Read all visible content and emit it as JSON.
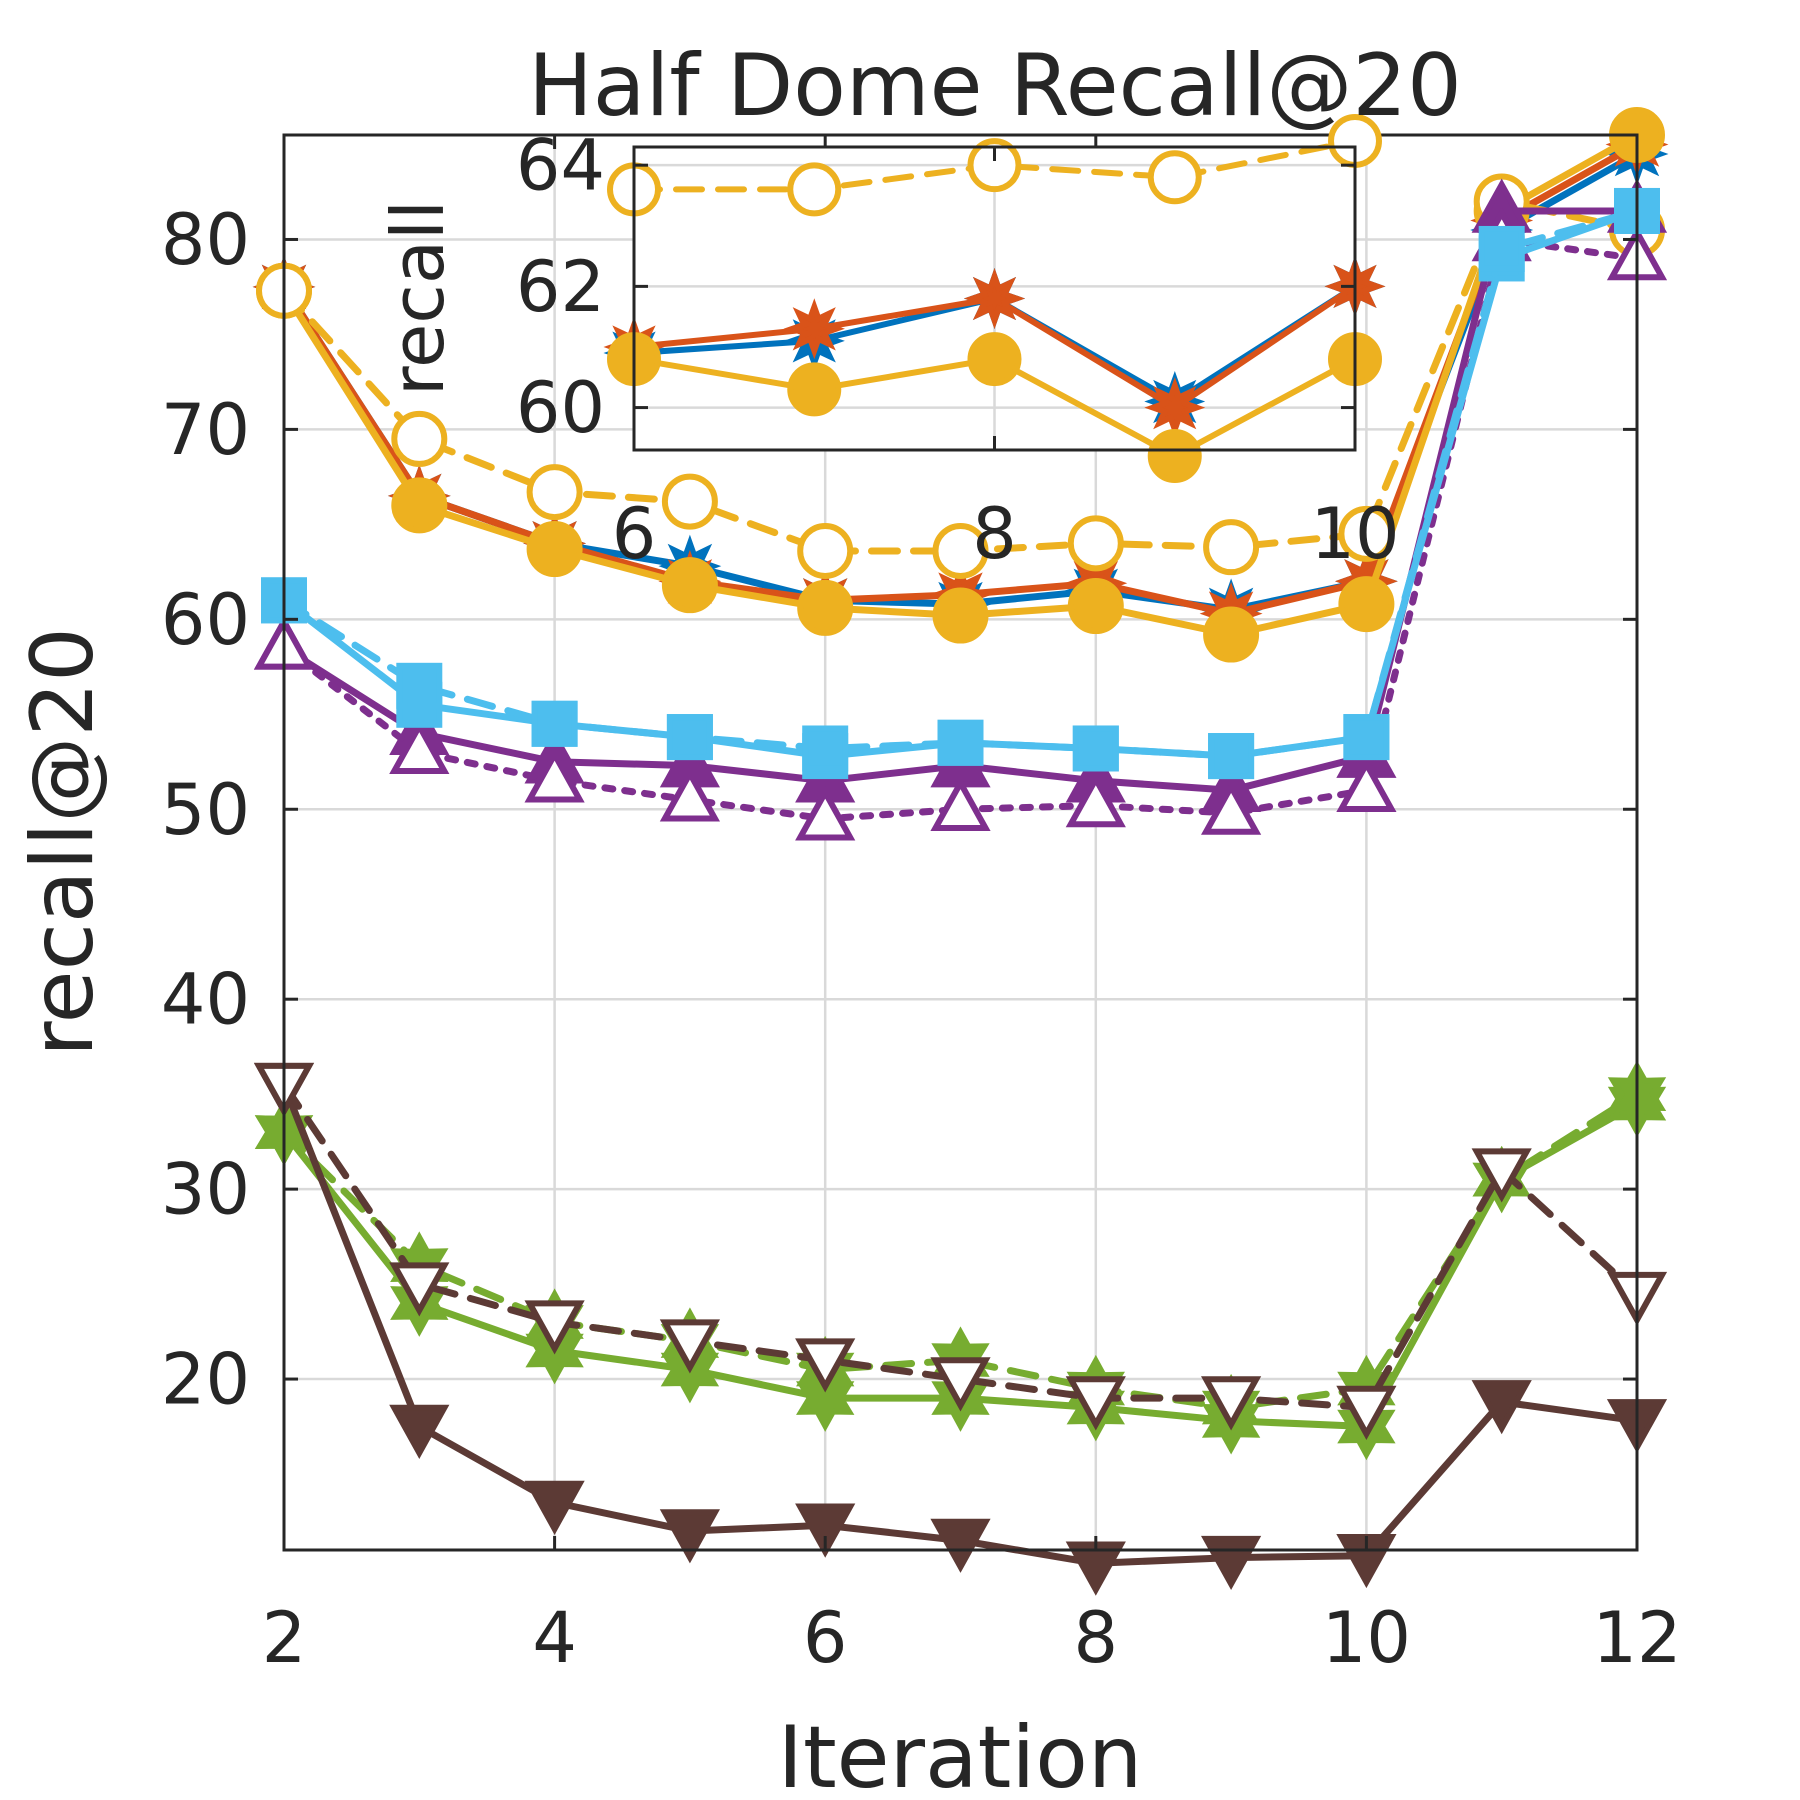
{
  "chart_data": {
    "type": "line",
    "title": "Half Dome Recall@20",
    "xlabel": "Iteration",
    "ylabel": "recall@20",
    "xlim": [
      2,
      12
    ],
    "ylim": [
      11,
      85.5
    ],
    "xticks": [
      2,
      4,
      6,
      8,
      10,
      12
    ],
    "yticks": [
      20,
      30,
      40,
      50,
      60,
      70,
      80
    ],
    "grid": true,
    "x": [
      2,
      3,
      4,
      5,
      6,
      7,
      8,
      9,
      10,
      11,
      12
    ],
    "series": [
      {
        "name": "blue-star-solid",
        "color": "#0072BD",
        "dash": "solid",
        "marker": "star",
        "fill": true,
        "values": [
          77.5,
          66.5,
          64.0,
          62.8,
          61.0,
          60.8,
          61.5,
          60.5,
          62.0,
          80.5,
          84.5
        ]
      },
      {
        "name": "orange-star-solid",
        "color": "#D95319",
        "dash": "solid",
        "marker": "star",
        "fill": true,
        "values": [
          77.5,
          66.5,
          64.0,
          62.0,
          61.0,
          61.3,
          61.9,
          60.3,
          62.0,
          81.0,
          85.0
        ]
      },
      {
        "name": "yellow-circle-filled-solid",
        "color": "#EDB120",
        "dash": "solid",
        "marker": "circle",
        "fill": true,
        "values": [
          77.3,
          66.0,
          63.7,
          61.8,
          60.6,
          60.2,
          60.7,
          59.2,
          60.8,
          81.5,
          85.5
        ]
      },
      {
        "name": "yellow-circle-open-dashed",
        "color": "#EDB120",
        "dash": "dashed",
        "marker": "circle",
        "fill": false,
        "values": [
          77.3,
          69.5,
          66.7,
          66.2,
          63.6,
          63.6,
          64.0,
          63.8,
          64.5,
          82.0,
          80.5
        ]
      },
      {
        "name": "purple-triangle-filled-solid",
        "color": "#7E2F8E",
        "dash": "solid",
        "marker": "triangle-up",
        "fill": true,
        "values": [
          58.5,
          54.0,
          52.5,
          52.3,
          51.5,
          52.3,
          51.5,
          51.0,
          52.8,
          81.5,
          81.5
        ]
      },
      {
        "name": "purple-triangle-open-dotted",
        "color": "#7E2F8E",
        "dash": "dotted",
        "marker": "triangle-up",
        "fill": false,
        "values": [
          58.5,
          53.0,
          51.5,
          50.5,
          49.5,
          50.0,
          50.2,
          49.8,
          51.0,
          80.0,
          79.0
        ]
      },
      {
        "name": "lightblue-square-solid",
        "color": "#4DBEEE",
        "dash": "solid",
        "marker": "square",
        "fill": true,
        "values": [
          61.0,
          55.5,
          54.5,
          53.8,
          52.8,
          53.5,
          53.2,
          52.8,
          53.8,
          79.0,
          81.5
        ]
      },
      {
        "name": "lightblue-square-dashed",
        "color": "#4DBEEE",
        "dash": "dashed",
        "marker": "square",
        "fill": true,
        "values": [
          61.0,
          56.5,
          54.5,
          53.8,
          53.2,
          53.5,
          53.2,
          52.8,
          53.8,
          79.5,
          81.5
        ]
      },
      {
        "name": "green-hexagram-solid",
        "color": "#77AC30",
        "dash": "solid",
        "marker": "hexagram",
        "fill": true,
        "values": [
          33.0,
          24.0,
          21.5,
          20.5,
          19.0,
          19.0,
          18.5,
          17.8,
          17.5,
          30.5,
          34.5
        ]
      },
      {
        "name": "green-hexagram-dashed",
        "color": "#77AC30",
        "dash": "dashed",
        "marker": "hexagram",
        "fill": true,
        "values": [
          33.0,
          26.0,
          23.0,
          22.0,
          20.5,
          21.0,
          19.5,
          18.5,
          19.5,
          30.5,
          35.0
        ]
      },
      {
        "name": "brown-triangle-down-filled-solid",
        "color": "#5C3A35",
        "dash": "solid",
        "marker": "triangle-down",
        "fill": true,
        "values": [
          35.5,
          17.5,
          13.5,
          12.0,
          12.3,
          11.5,
          10.3,
          10.6,
          10.7,
          18.8,
          17.8
        ]
      },
      {
        "name": "brown-triangle-down-open-dashed",
        "color": "#5C3A35",
        "dash": "dashed",
        "marker": "triangle-down",
        "fill": false,
        "values": [
          35.5,
          25.0,
          23.0,
          22.0,
          21.0,
          20.0,
          19.0,
          19.0,
          18.5,
          31.0,
          24.5
        ]
      }
    ],
    "inset": {
      "ylabel": "recall",
      "xlim": [
        6,
        10
      ],
      "ylim": [
        59.3,
        64.3
      ],
      "xticks": [
        6,
        8,
        10
      ],
      "yticks": [
        60,
        62,
        64
      ],
      "x": [
        6,
        7,
        8,
        9,
        10
      ],
      "series": [
        {
          "name": "blue-star-solid",
          "color": "#0072BD",
          "dash": "solid",
          "marker": "star",
          "fill": true,
          "values": [
            60.9,
            61.1,
            61.8,
            60.1,
            62.0
          ]
        },
        {
          "name": "orange-star-solid",
          "color": "#D95319",
          "dash": "solid",
          "marker": "star",
          "fill": true,
          "values": [
            61.0,
            61.3,
            61.8,
            60.0,
            62.0
          ]
        },
        {
          "name": "yellow-circle-filled-solid",
          "color": "#EDB120",
          "dash": "solid",
          "marker": "circle",
          "fill": true,
          "values": [
            60.8,
            60.3,
            60.8,
            59.2,
            60.8
          ]
        },
        {
          "name": "yellow-circle-open-dashed",
          "color": "#EDB120",
          "dash": "dashed",
          "marker": "circle",
          "fill": false,
          "values": [
            63.6,
            63.6,
            64.0,
            63.8,
            64.4
          ]
        }
      ]
    }
  }
}
